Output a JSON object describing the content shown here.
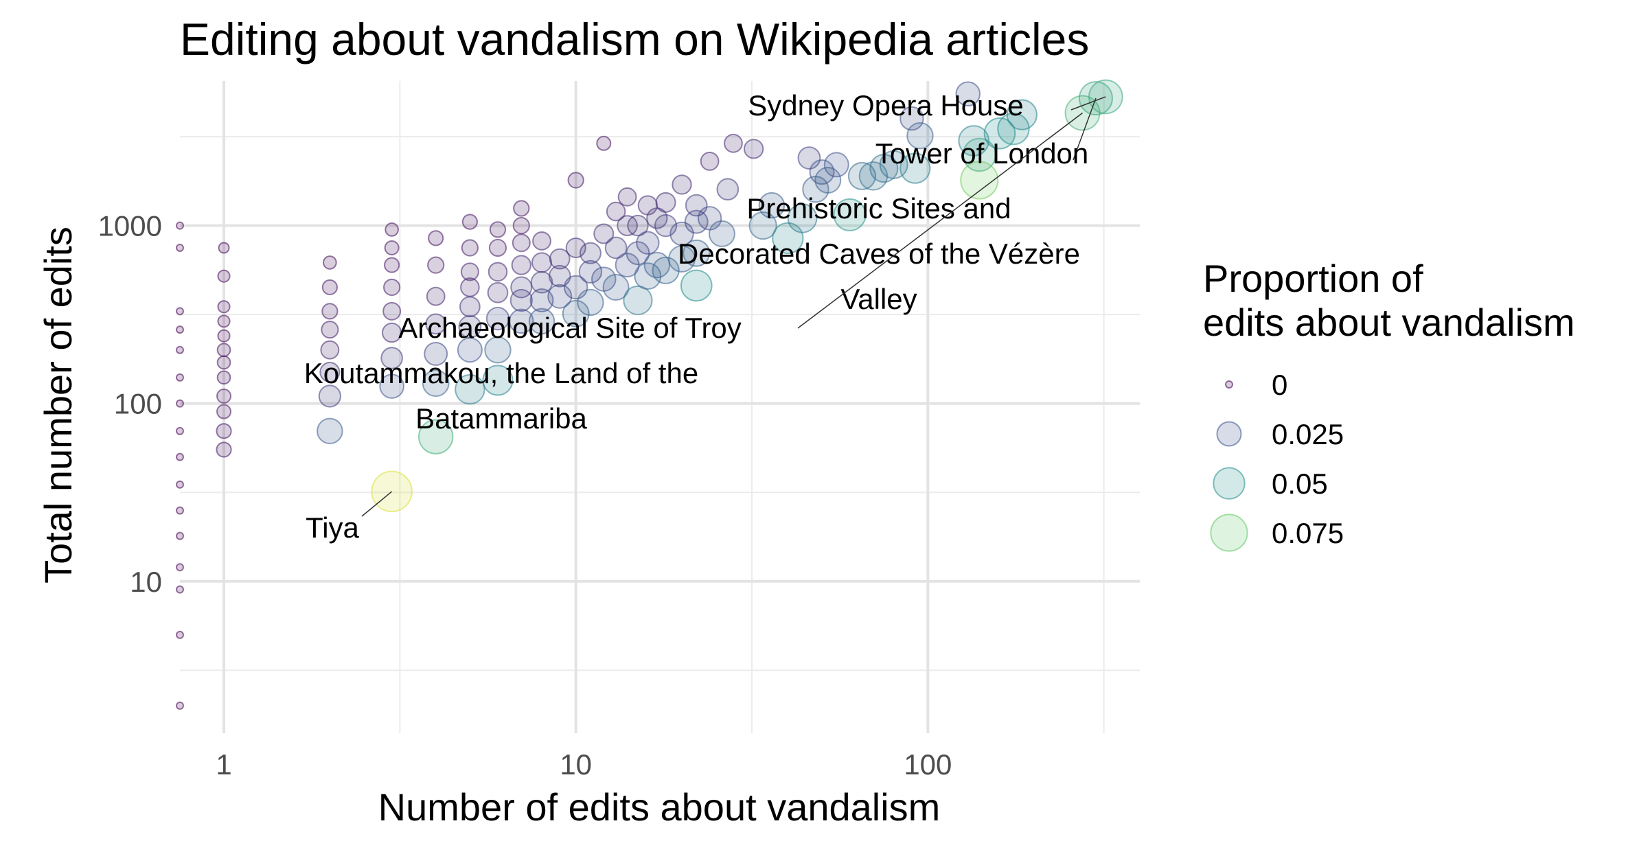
{
  "chart_data": {
    "type": "scatter",
    "title": "Editing about vandalism on Wikipedia articles",
    "xlabel": "Number of edits about vandalism",
    "ylabel": "Total number of edits",
    "x_scale": "log10",
    "y_scale": "log10",
    "xlim": [
      0.75,
      400
    ],
    "ylim": [
      1.4,
      6500
    ],
    "x_ticks": [
      {
        "value": 1,
        "label": "1"
      },
      {
        "value": 10,
        "label": "10"
      },
      {
        "value": 100,
        "label": "100"
      }
    ],
    "y_ticks": [
      {
        "value": 10,
        "label": "10"
      },
      {
        "value": 100,
        "label": "100"
      },
      {
        "value": 1000,
        "label": "1000"
      }
    ],
    "grid": true,
    "legend": {
      "title": "Proportion of\nedits about vandalism",
      "position": "right",
      "entries": [
        {
          "label": "0",
          "value": 0,
          "color": "#440154"
        },
        {
          "label": "0.025",
          "value": 0.025,
          "color": "#3b528b"
        },
        {
          "label": "0.05",
          "value": 0.05,
          "color": "#21908c"
        },
        {
          "label": "0.075",
          "value": 0.075,
          "color": "#5dc863"
        }
      ]
    },
    "point_alpha": 0.2,
    "points": [
      {
        "x": 0.75,
        "y": 2,
        "p": 0
      },
      {
        "x": 0.75,
        "y": 5,
        "p": 0
      },
      {
        "x": 0.75,
        "y": 9,
        "p": 0
      },
      {
        "x": 0.75,
        "y": 12,
        "p": 0
      },
      {
        "x": 0.75,
        "y": 18,
        "p": 0
      },
      {
        "x": 0.75,
        "y": 25,
        "p": 0
      },
      {
        "x": 0.75,
        "y": 35,
        "p": 0
      },
      {
        "x": 0.75,
        "y": 50,
        "p": 0
      },
      {
        "x": 0.75,
        "y": 70,
        "p": 0
      },
      {
        "x": 0.75,
        "y": 100,
        "p": 0
      },
      {
        "x": 0.75,
        "y": 140,
        "p": 0
      },
      {
        "x": 0.75,
        "y": 200,
        "p": 0
      },
      {
        "x": 0.75,
        "y": 260,
        "p": 0
      },
      {
        "x": 0.75,
        "y": 330,
        "p": 0
      },
      {
        "x": 0.75,
        "y": 750,
        "p": 0
      },
      {
        "x": 0.75,
        "y": 1000,
        "p": 0
      },
      {
        "x": 1,
        "y": 55,
        "p": 0.005
      },
      {
        "x": 1,
        "y": 70,
        "p": 0.005
      },
      {
        "x": 1,
        "y": 90,
        "p": 0.004
      },
      {
        "x": 1,
        "y": 110,
        "p": 0.004
      },
      {
        "x": 1,
        "y": 140,
        "p": 0.003
      },
      {
        "x": 1,
        "y": 170,
        "p": 0.003
      },
      {
        "x": 1,
        "y": 200,
        "p": 0.003
      },
      {
        "x": 1,
        "y": 240,
        "p": 0.002
      },
      {
        "x": 1,
        "y": 290,
        "p": 0.002
      },
      {
        "x": 1,
        "y": 350,
        "p": 0.002
      },
      {
        "x": 1,
        "y": 520,
        "p": 0.002
      },
      {
        "x": 1,
        "y": 750,
        "p": 0.001
      },
      {
        "x": 2,
        "y": 70,
        "p": 0.028
      },
      {
        "x": 2,
        "y": 110,
        "p": 0.018
      },
      {
        "x": 2,
        "y": 150,
        "p": 0.013
      },
      {
        "x": 2,
        "y": 200,
        "p": 0.01
      },
      {
        "x": 2,
        "y": 260,
        "p": 0.008
      },
      {
        "x": 2,
        "y": 330,
        "p": 0.006
      },
      {
        "x": 2,
        "y": 450,
        "p": 0.005
      },
      {
        "x": 2,
        "y": 620,
        "p": 0.003
      },
      {
        "x": 3,
        "y": 32,
        "p": 0.094
      },
      {
        "x": 3,
        "y": 125,
        "p": 0.024
      },
      {
        "x": 3,
        "y": 180,
        "p": 0.017
      },
      {
        "x": 3,
        "y": 250,
        "p": 0.012
      },
      {
        "x": 3,
        "y": 330,
        "p": 0.009
      },
      {
        "x": 3,
        "y": 450,
        "p": 0.007
      },
      {
        "x": 3,
        "y": 600,
        "p": 0.005
      },
      {
        "x": 3,
        "y": 750,
        "p": 0.004
      },
      {
        "x": 3,
        "y": 950,
        "p": 0.003
      },
      {
        "x": 4,
        "y": 65,
        "p": 0.062
      },
      {
        "x": 4,
        "y": 130,
        "p": 0.031
      },
      {
        "x": 4,
        "y": 190,
        "p": 0.021
      },
      {
        "x": 4,
        "y": 280,
        "p": 0.014
      },
      {
        "x": 4,
        "y": 400,
        "p": 0.01
      },
      {
        "x": 4,
        "y": 600,
        "p": 0.007
      },
      {
        "x": 4,
        "y": 850,
        "p": 0.005
      },
      {
        "x": 5,
        "y": 120,
        "p": 0.042
      },
      {
        "x": 5,
        "y": 200,
        "p": 0.025
      },
      {
        "x": 5,
        "y": 270,
        "p": 0.019
      },
      {
        "x": 5,
        "y": 350,
        "p": 0.014
      },
      {
        "x": 5,
        "y": 450,
        "p": 0.011
      },
      {
        "x": 5,
        "y": 550,
        "p": 0.009
      },
      {
        "x": 5,
        "y": 750,
        "p": 0.007
      },
      {
        "x": 5,
        "y": 1050,
        "p": 0.005
      },
      {
        "x": 6,
        "y": 135,
        "p": 0.044
      },
      {
        "x": 6,
        "y": 200,
        "p": 0.03
      },
      {
        "x": 6,
        "y": 300,
        "p": 0.02
      },
      {
        "x": 6,
        "y": 420,
        "p": 0.014
      },
      {
        "x": 6,
        "y": 550,
        "p": 0.011
      },
      {
        "x": 6,
        "y": 750,
        "p": 0.008
      },
      {
        "x": 6,
        "y": 950,
        "p": 0.006
      },
      {
        "x": 7,
        "y": 290,
        "p": 0.024
      },
      {
        "x": 7,
        "y": 380,
        "p": 0.018
      },
      {
        "x": 7,
        "y": 450,
        "p": 0.016
      },
      {
        "x": 7,
        "y": 600,
        "p": 0.012
      },
      {
        "x": 7,
        "y": 800,
        "p": 0.009
      },
      {
        "x": 7,
        "y": 1000,
        "p": 0.007
      },
      {
        "x": 7,
        "y": 1250,
        "p": 0.006
      },
      {
        "x": 8,
        "y": 290,
        "p": 0.028
      },
      {
        "x": 8,
        "y": 380,
        "p": 0.021
      },
      {
        "x": 8,
        "y": 480,
        "p": 0.017
      },
      {
        "x": 8,
        "y": 620,
        "p": 0.013
      },
      {
        "x": 8,
        "y": 820,
        "p": 0.01
      },
      {
        "x": 9,
        "y": 400,
        "p": 0.023
      },
      {
        "x": 9,
        "y": 520,
        "p": 0.017
      },
      {
        "x": 9,
        "y": 650,
        "p": 0.014
      },
      {
        "x": 10,
        "y": 320,
        "p": 0.031
      },
      {
        "x": 10,
        "y": 450,
        "p": 0.022
      },
      {
        "x": 10,
        "y": 750,
        "p": 0.013
      },
      {
        "x": 10,
        "y": 1800,
        "p": 0.006
      },
      {
        "x": 11,
        "y": 370,
        "p": 0.03
      },
      {
        "x": 11,
        "y": 550,
        "p": 0.02
      },
      {
        "x": 11,
        "y": 700,
        "p": 0.016
      },
      {
        "x": 12,
        "y": 500,
        "p": 0.024
      },
      {
        "x": 12,
        "y": 900,
        "p": 0.013
      },
      {
        "x": 12,
        "y": 2900,
        "p": 0.004
      },
      {
        "x": 13,
        "y": 450,
        "p": 0.029
      },
      {
        "x": 13,
        "y": 750,
        "p": 0.017
      },
      {
        "x": 13,
        "y": 1200,
        "p": 0.011
      },
      {
        "x": 14,
        "y": 600,
        "p": 0.023
      },
      {
        "x": 14,
        "y": 1000,
        "p": 0.014
      },
      {
        "x": 14,
        "y": 1450,
        "p": 0.01
      },
      {
        "x": 15,
        "y": 380,
        "p": 0.039
      },
      {
        "x": 15,
        "y": 700,
        "p": 0.021
      },
      {
        "x": 15,
        "y": 1000,
        "p": 0.015
      },
      {
        "x": 16,
        "y": 520,
        "p": 0.031
      },
      {
        "x": 16,
        "y": 800,
        "p": 0.02
      },
      {
        "x": 16,
        "y": 1300,
        "p": 0.012
      },
      {
        "x": 17,
        "y": 600,
        "p": 0.028
      },
      {
        "x": 17,
        "y": 1100,
        "p": 0.015
      },
      {
        "x": 18,
        "y": 560,
        "p": 0.032
      },
      {
        "x": 18,
        "y": 1000,
        "p": 0.018
      },
      {
        "x": 18,
        "y": 1350,
        "p": 0.013
      },
      {
        "x": 20,
        "y": 650,
        "p": 0.031
      },
      {
        "x": 20,
        "y": 900,
        "p": 0.022
      },
      {
        "x": 20,
        "y": 1700,
        "p": 0.012
      },
      {
        "x": 22,
        "y": 460,
        "p": 0.048
      },
      {
        "x": 22,
        "y": 700,
        "p": 0.031
      },
      {
        "x": 22,
        "y": 1050,
        "p": 0.021
      },
      {
        "x": 22,
        "y": 1300,
        "p": 0.017
      },
      {
        "x": 24,
        "y": 1100,
        "p": 0.022
      },
      {
        "x": 24,
        "y": 2300,
        "p": 0.01
      },
      {
        "x": 26,
        "y": 900,
        "p": 0.029
      },
      {
        "x": 27,
        "y": 1600,
        "p": 0.017
      },
      {
        "x": 28,
        "y": 2900,
        "p": 0.01
      },
      {
        "x": 32,
        "y": 2700,
        "p": 0.012
      },
      {
        "x": 34,
        "y": 1000,
        "p": 0.034
      },
      {
        "x": 36,
        "y": 1300,
        "p": 0.028
      },
      {
        "x": 40,
        "y": 850,
        "p": 0.047
      },
      {
        "x": 44,
        "y": 1100,
        "p": 0.04
      },
      {
        "x": 46,
        "y": 2400,
        "p": 0.019
      },
      {
        "x": 48,
        "y": 1600,
        "p": 0.03
      },
      {
        "x": 50,
        "y": 2000,
        "p": 0.025
      },
      {
        "x": 52,
        "y": 1800,
        "p": 0.029
      },
      {
        "x": 55,
        "y": 2200,
        "p": 0.025
      },
      {
        "x": 60,
        "y": 1150,
        "p": 0.052
      },
      {
        "x": 65,
        "y": 1900,
        "p": 0.034
      },
      {
        "x": 70,
        "y": 1900,
        "p": 0.037
      },
      {
        "x": 75,
        "y": 2100,
        "p": 0.036
      },
      {
        "x": 80,
        "y": 2200,
        "p": 0.036
      },
      {
        "x": 90,
        "y": 4000,
        "p": 0.022
      },
      {
        "x": 92,
        "y": 2100,
        "p": 0.044
      },
      {
        "x": 95,
        "y": 3200,
        "p": 0.03
      },
      {
        "x": 130,
        "y": 5500,
        "p": 0.024
      },
      {
        "x": 135,
        "y": 3000,
        "p": 0.045
      },
      {
        "x": 140,
        "y": 2500,
        "p": 0.056
      },
      {
        "x": 140,
        "y": 1800,
        "p": 0.078
      },
      {
        "x": 160,
        "y": 3300,
        "p": 0.048
      },
      {
        "x": 175,
        "y": 3500,
        "p": 0.05
      },
      {
        "x": 185,
        "y": 4200,
        "p": 0.044
      },
      {
        "x": 275,
        "y": 4300,
        "p": 0.064
      },
      {
        "x": 300,
        "y": 5200,
        "p": 0.058
      },
      {
        "x": 320,
        "y": 5300,
        "p": 0.06
      }
    ],
    "annotations": [
      {
        "lines": [
          "Sydney Opera House"
        ],
        "x": 320,
        "y": 5300
      },
      {
        "lines": [
          "Tower of London"
        ],
        "x": 300,
        "y": 5200
      },
      {
        "lines": [
          "Prehistoric Sites and",
          "Decorated Caves of the Vézère",
          "Valley"
        ],
        "x": 275,
        "y": 4300
      },
      {
        "lines": [
          "Archaeological Site of Troy"
        ],
        "x": 275,
        "y": 4300
      },
      {
        "lines": [
          "Koutammakou, the Land of the",
          "Batammariba"
        ],
        "x": 4,
        "y": 65
      },
      {
        "lines": [
          "Tiya"
        ],
        "x": 3,
        "y": 32
      }
    ]
  }
}
